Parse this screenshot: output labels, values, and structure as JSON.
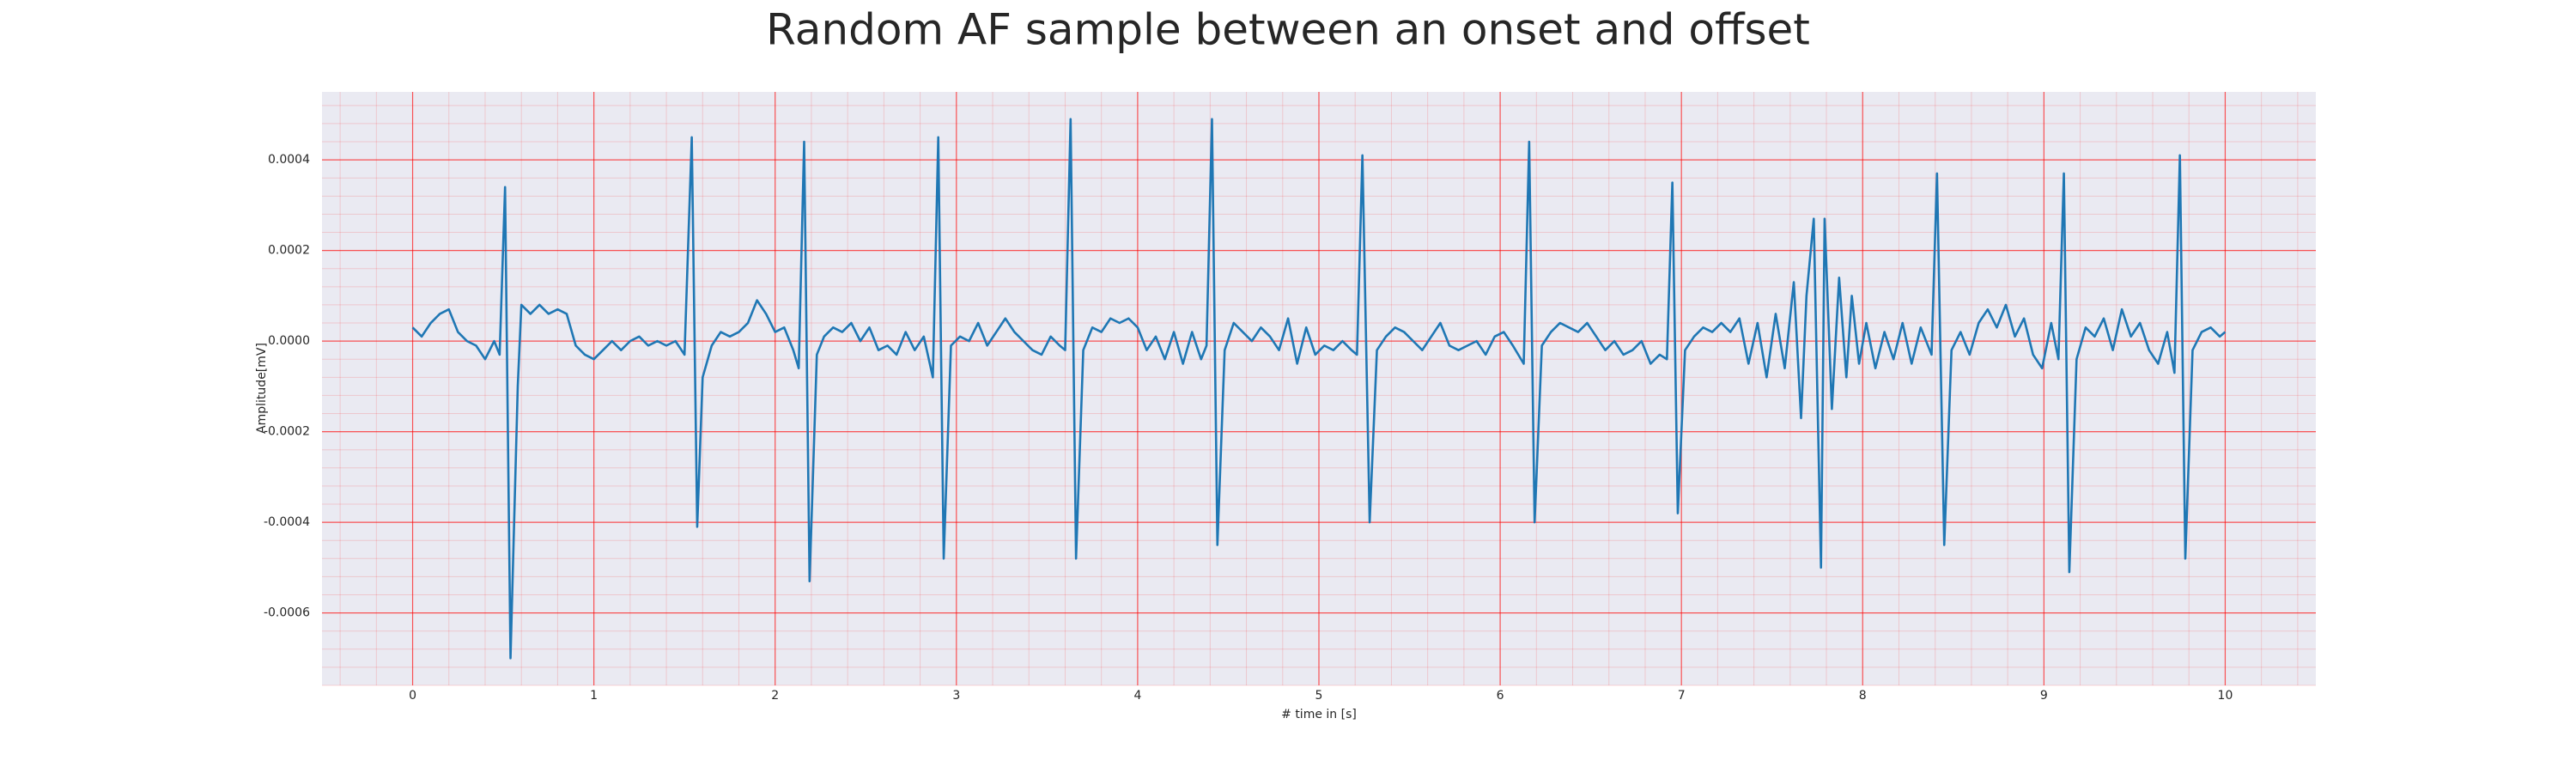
{
  "chart_data": {
    "type": "line",
    "title": "Random AF sample between an onset and offset",
    "xlabel": "# time in [s]",
    "ylabel": "Amplitude[mV]",
    "xlim": [
      -0.5,
      10.5
    ],
    "ylim": [
      -0.00076,
      0.00055
    ],
    "xticks": [
      0,
      1,
      2,
      3,
      4,
      5,
      6,
      7,
      8,
      9,
      10
    ],
    "yticks": [
      {
        "value": -0.0006,
        "label": "-0.0006"
      },
      {
        "value": -0.0004,
        "label": "-0.0004"
      },
      {
        "value": -0.0002,
        "label": "-0.0002"
      },
      {
        "value": 0,
        "label": "0.0000"
      },
      {
        "value": 0.0002,
        "label": "0.0002"
      },
      {
        "value": 0.0004,
        "label": "0.0004"
      }
    ],
    "grid": true,
    "minor_grid": true,
    "grid_color": "#ff0000",
    "background": "#eaeaf2",
    "color": "#1f77b4",
    "x": [
      0,
      0.05,
      0.1,
      0.15,
      0.2,
      0.25,
      0.3,
      0.35,
      0.4,
      0.45,
      0.48,
      0.51,
      0.54,
      0.58,
      0.6,
      0.65,
      0.7,
      0.75,
      0.8,
      0.85,
      0.9,
      0.95,
      1.0,
      1.05,
      1.1,
      1.15,
      1.2,
      1.25,
      1.3,
      1.35,
      1.4,
      1.45,
      1.5,
      1.54,
      1.57,
      1.6,
      1.65,
      1.7,
      1.75,
      1.8,
      1.85,
      1.9,
      1.95,
      2.0,
      2.05,
      2.1,
      2.13,
      2.16,
      2.19,
      2.23,
      2.27,
      2.32,
      2.37,
      2.42,
      2.47,
      2.52,
      2.57,
      2.62,
      2.67,
      2.72,
      2.77,
      2.82,
      2.87,
      2.9,
      2.93,
      2.97,
      3.02,
      3.07,
      3.12,
      3.17,
      3.22,
      3.27,
      3.32,
      3.37,
      3.42,
      3.47,
      3.52,
      3.57,
      3.6,
      3.63,
      3.66,
      3.7,
      3.75,
      3.8,
      3.85,
      3.9,
      3.95,
      4.0,
      4.05,
      4.1,
      4.15,
      4.2,
      4.25,
      4.3,
      4.35,
      4.38,
      4.41,
      4.44,
      4.48,
      4.53,
      4.58,
      4.63,
      4.68,
      4.73,
      4.78,
      4.83,
      4.88,
      4.93,
      4.98,
      5.03,
      5.08,
      5.13,
      5.18,
      5.21,
      5.24,
      5.28,
      5.32,
      5.37,
      5.42,
      5.47,
      5.52,
      5.57,
      5.62,
      5.67,
      5.72,
      5.77,
      5.82,
      5.87,
      5.92,
      5.97,
      6.02,
      6.07,
      6.13,
      6.16,
      6.19,
      6.23,
      6.28,
      6.33,
      6.38,
      6.43,
      6.48,
      6.53,
      6.58,
      6.63,
      6.68,
      6.73,
      6.78,
      6.83,
      6.88,
      6.92,
      6.95,
      6.98,
      7.02,
      7.07,
      7.12,
      7.17,
      7.22,
      7.27,
      7.32,
      7.37,
      7.42,
      7.47,
      7.52,
      7.57,
      7.62,
      7.66,
      7.69,
      7.73,
      7.77,
      7.79,
      7.83,
      7.87,
      7.91,
      7.94,
      7.98,
      8.02,
      8.07,
      8.12,
      8.17,
      8.22,
      8.27,
      8.32,
      8.38,
      8.41,
      8.45,
      8.49,
      8.54,
      8.59,
      8.64,
      8.69,
      8.74,
      8.79,
      8.84,
      8.89,
      8.94,
      8.99,
      9.04,
      9.08,
      9.11,
      9.14,
      9.18,
      9.23,
      9.28,
      9.33,
      9.38,
      9.43,
      9.48,
      9.53,
      9.58,
      9.63,
      9.68,
      9.72,
      9.75,
      9.78,
      9.82,
      9.87,
      9.92,
      9.97,
      10.0
    ],
    "values": [
      3e-05,
      1e-05,
      4e-05,
      6e-05,
      7e-05,
      2e-05,
      0,
      -1e-05,
      -4e-05,
      0,
      -3e-05,
      0.00034,
      -0.0007,
      -0.0001,
      8e-05,
      6e-05,
      8e-05,
      6e-05,
      7e-05,
      6e-05,
      -1e-05,
      -3e-05,
      -4e-05,
      -2e-05,
      0,
      -2e-05,
      0,
      1e-05,
      -1e-05,
      0,
      -1e-05,
      0,
      -3e-05,
      0.00045,
      -0.00041,
      -8e-05,
      -1e-05,
      2e-05,
      1e-05,
      2e-05,
      4e-05,
      9e-05,
      6e-05,
      2e-05,
      3e-05,
      -2e-05,
      -6e-05,
      0.00044,
      -0.00053,
      -3e-05,
      1e-05,
      3e-05,
      2e-05,
      4e-05,
      0,
      3e-05,
      -2e-05,
      -1e-05,
      -3e-05,
      2e-05,
      -2e-05,
      1e-05,
      -8e-05,
      0.00045,
      -0.00048,
      -1e-05,
      1e-05,
      0,
      4e-05,
      -1e-05,
      2e-05,
      5e-05,
      2e-05,
      0,
      -2e-05,
      -3e-05,
      1e-05,
      -1e-05,
      -2e-05,
      0.00049,
      -0.00048,
      -2e-05,
      3e-05,
      2e-05,
      5e-05,
      4e-05,
      5e-05,
      3e-05,
      -2e-05,
      1e-05,
      -4e-05,
      2e-05,
      -5e-05,
      2e-05,
      -4e-05,
      -1e-05,
      0.00049,
      -0.00045,
      -2e-05,
      4e-05,
      2e-05,
      0,
      3e-05,
      1e-05,
      -2e-05,
      5e-05,
      -5e-05,
      3e-05,
      -3e-05,
      -1e-05,
      -2e-05,
      0,
      -2e-05,
      -3e-05,
      0.00041,
      -0.0004,
      -2e-05,
      1e-05,
      3e-05,
      2e-05,
      0,
      -2e-05,
      1e-05,
      4e-05,
      -1e-05,
      -2e-05,
      -1e-05,
      0,
      -3e-05,
      1e-05,
      2e-05,
      -1e-05,
      -5e-05,
      0.00044,
      -0.0004,
      -1e-05,
      2e-05,
      4e-05,
      3e-05,
      2e-05,
      4e-05,
      1e-05,
      -2e-05,
      0,
      -3e-05,
      -2e-05,
      0,
      -5e-05,
      -3e-05,
      -4e-05,
      0.00035,
      -0.00038,
      -2e-05,
      1e-05,
      3e-05,
      2e-05,
      4e-05,
      2e-05,
      5e-05,
      -5e-05,
      4e-05,
      -8e-05,
      6e-05,
      -6e-05,
      0.00013,
      -0.00017,
      0.0001,
      0.00027,
      -0.0005,
      0.00027,
      -0.00015,
      0.00014,
      -8e-05,
      0.0001,
      -5e-05,
      4e-05,
      -6e-05,
      2e-05,
      -4e-05,
      4e-05,
      -5e-05,
      3e-05,
      -3e-05,
      0.00037,
      -0.00045,
      -2e-05,
      2e-05,
      -3e-05,
      4e-05,
      7e-05,
      3e-05,
      8e-05,
      1e-05,
      5e-05,
      -3e-05,
      -6e-05,
      4e-05,
      -4e-05,
      0.00037,
      -0.00051,
      -4e-05,
      3e-05,
      1e-05,
      5e-05,
      -2e-05,
      7e-05,
      1e-05,
      4e-05,
      -2e-05,
      -5e-05,
      2e-05,
      -7e-05,
      0.00041,
      -0.00048,
      -2e-05,
      2e-05,
      3e-05,
      1e-05,
      2e-05
    ]
  }
}
